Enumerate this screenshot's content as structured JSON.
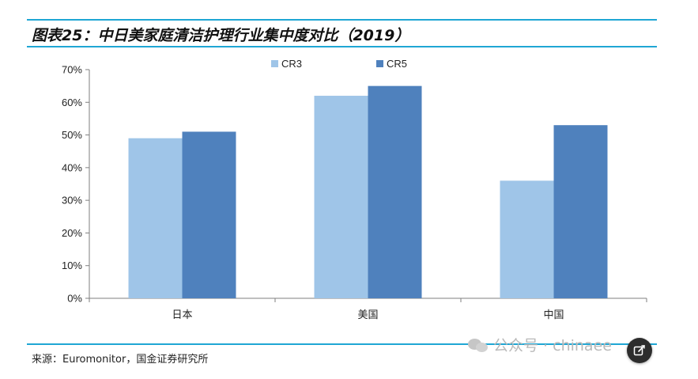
{
  "header": {
    "title": "图表25：中日美家庭清洁护理行业集中度对比（2019）"
  },
  "colors": {
    "accent_rule": "#1fa6d4",
    "cr3": "#9fc5e8",
    "cr5": "#4f81bd",
    "axis": "#7f7f7f"
  },
  "chart_data": {
    "type": "bar",
    "categories": [
      "日本",
      "美国",
      "中国"
    ],
    "series": [
      {
        "name": "CR3",
        "values": [
          0.49,
          0.62,
          0.36
        ]
      },
      {
        "name": "CR5",
        "values": [
          0.51,
          0.65,
          0.53
        ]
      }
    ],
    "yticks": [
      "0%",
      "10%",
      "20%",
      "30%",
      "40%",
      "50%",
      "60%",
      "70%"
    ],
    "ylim": [
      0,
      0.7
    ],
    "grid": false,
    "legend_position": "top"
  },
  "footer": {
    "source": "来源：Euromonitor，国金证券研究所"
  },
  "watermark": {
    "text": "公众号 · chinaee",
    "icon": "wechat-icon"
  },
  "overlay": {
    "edit_icon": "edit-icon"
  }
}
